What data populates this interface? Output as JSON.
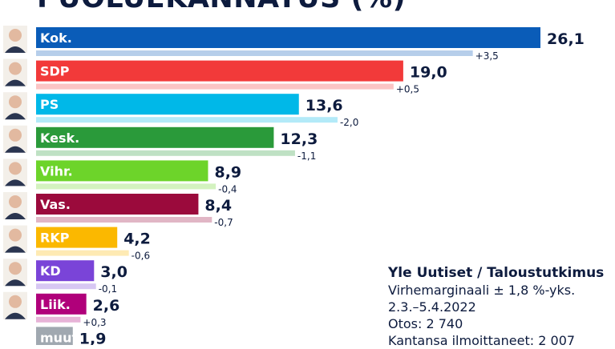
{
  "chart_data": {
    "type": "bar",
    "orientation": "horizontal",
    "title": "PUOLUEKANNATUS (%)",
    "categories": [
      "Kok.",
      "SDP",
      "PS",
      "Kesk.",
      "Vihr.",
      "Vas.",
      "RKP",
      "KD",
      "Liik.",
      "muut"
    ],
    "values": [
      26.1,
      19.0,
      13.6,
      12.3,
      8.9,
      8.4,
      4.2,
      3.0,
      2.6,
      1.9
    ],
    "value_labels": [
      "26,1",
      "19,0",
      "13,6",
      "12,3",
      "8,9",
      "8,4",
      "4,2",
      "3,0",
      "2,6",
      "1,9"
    ],
    "changes": [
      3.5,
      0.5,
      -2.0,
      -1.1,
      -0.4,
      -0.7,
      -0.6,
      -0.1,
      0.3,
      null
    ],
    "change_labels": [
      "+3,5",
      "+0,5",
      "-2,0",
      "-1,1",
      "-0,4",
      "-0,7",
      "-0,6",
      "-0,1",
      "+0,3",
      ""
    ],
    "colors": [
      "#0a5cb8",
      "#f23a3a",
      "#00b8e8",
      "#2a9a3a",
      "#6dd42a",
      "#9b0a3c",
      "#fbb800",
      "#7a44d8",
      "#b0007a",
      "#a0a8b0"
    ],
    "xlim": [
      0,
      26.1
    ],
    "grid": false
  },
  "info": {
    "source": "Yle Uutiset / Taloustutkimus",
    "margin": "Virhemarginaali ± 1,8 %-yks.",
    "period": "2.3.–5.4.2022",
    "sample": "Otos: 2 740",
    "respondents": "Kantansa ilmoittaneet: 2 007"
  }
}
